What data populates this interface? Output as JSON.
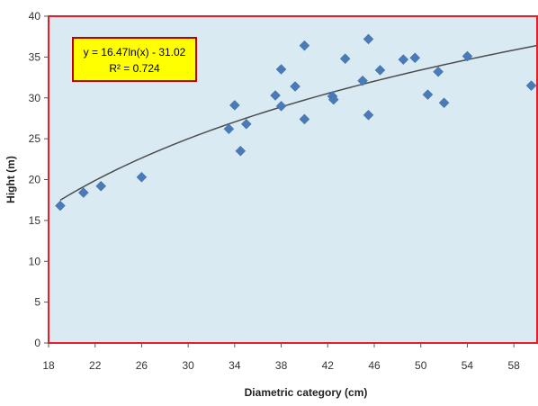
{
  "chart_data": {
    "type": "scatter",
    "title": "",
    "xlabel": "Diametric category  (cm)",
    "ylabel": "Hight  (m)",
    "xlim": [
      18,
      60
    ],
    "ylim": [
      0,
      40
    ],
    "x_ticks": [
      "18",
      "22",
      "26",
      "30",
      "34",
      "38",
      "42",
      "46",
      "50",
      "54",
      "58"
    ],
    "y_ticks": [
      "0",
      "5",
      "10",
      "15",
      "20",
      "25",
      "30",
      "35",
      "40"
    ],
    "grid": false,
    "colors": {
      "plot_background": "#d9eaf3",
      "frame": "#e0202a",
      "marker": "#4a7ab8",
      "trendline": "#4d4d4d",
      "label_box_fill": "#ffff00",
      "label_box_border": "#c00000"
    },
    "series": [
      {
        "points": [
          {
            "x": 19,
            "y": 16.8
          },
          {
            "x": 21,
            "y": 18.4
          },
          {
            "x": 22.5,
            "y": 19.2
          },
          {
            "x": 26,
            "y": 20.3
          },
          {
            "x": 33.5,
            "y": 26.2
          },
          {
            "x": 34,
            "y": 29.1
          },
          {
            "x": 34.5,
            "y": 23.5
          },
          {
            "x": 35,
            "y": 26.8
          },
          {
            "x": 37.5,
            "y": 30.3
          },
          {
            "x": 38,
            "y": 33.5
          },
          {
            "x": 38,
            "y": 29.0
          },
          {
            "x": 39.2,
            "y": 31.4
          },
          {
            "x": 40,
            "y": 36.4
          },
          {
            "x": 40,
            "y": 27.4
          },
          {
            "x": 42.4,
            "y": 30.2
          },
          {
            "x": 42.5,
            "y": 29.8
          },
          {
            "x": 43.5,
            "y": 34.8
          },
          {
            "x": 45,
            "y": 32.1
          },
          {
            "x": 45.5,
            "y": 37.2
          },
          {
            "x": 45.5,
            "y": 27.9
          },
          {
            "x": 46.5,
            "y": 33.4
          },
          {
            "x": 48.5,
            "y": 34.7
          },
          {
            "x": 49.5,
            "y": 34.9
          },
          {
            "x": 50.6,
            "y": 30.4
          },
          {
            "x": 51.5,
            "y": 33.2
          },
          {
            "x": 52,
            "y": 29.4
          },
          {
            "x": 54,
            "y": 35.1
          },
          {
            "x": 59.5,
            "y": 31.5
          }
        ]
      }
    ],
    "trendline": {
      "type": "logarithmic",
      "a": 16.47,
      "b": -31.02,
      "x_range": [
        19,
        60
      ]
    },
    "annotations": {
      "equation": "y = 16.47ln(x) - 31.02",
      "r_squared": "R² = 0.724"
    }
  }
}
